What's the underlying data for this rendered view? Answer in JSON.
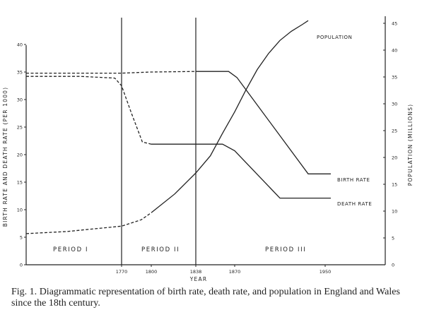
{
  "chart_data": {
    "type": "line",
    "title": "",
    "xlabel": "YEAR",
    "ylabel_left": "BIRTH RATE AND DEATH RATE (PER 1000)",
    "ylabel_right": "POPULATION (MILLIONS)",
    "x_ticks": [
      "1770",
      "1800",
      "1838",
      "1870",
      "1950"
    ],
    "y_left_ticks": [
      "0",
      "5",
      "10",
      "15",
      "20",
      "25",
      "30",
      "35",
      "40"
    ],
    "y_right_ticks": [
      "0",
      "5",
      "10",
      "15",
      "20",
      "25",
      "30",
      "35",
      "40",
      "45"
    ],
    "xlim": [
      1700,
      1980
    ],
    "ylim_left": [
      0,
      40
    ],
    "ylim_right": [
      0,
      45
    ],
    "grid": false,
    "period_dividers": [
      1770,
      1838
    ],
    "periods": [
      {
        "label": "PERIOD   I",
        "x": 1732
      },
      {
        "label": "PERIOD  II",
        "x": 1804
      },
      {
        "label": "PERIOD    III",
        "x": 1903
      }
    ],
    "series": [
      {
        "name": "BIRTH RATE",
        "axis": "left",
        "dashed_until": 1838,
        "points": [
          [
            1700,
            34.8
          ],
          [
            1740,
            34.8
          ],
          [
            1770,
            34.8
          ],
          [
            1800,
            35.0
          ],
          [
            1838,
            35.1
          ],
          [
            1865,
            35.1
          ],
          [
            1872,
            34.0
          ],
          [
            1935,
            16.5
          ],
          [
            1955,
            16.5
          ]
        ]
      },
      {
        "name": "DEATH RATE",
        "axis": "left",
        "dashed_until": 1800,
        "points": [
          [
            1700,
            34.2
          ],
          [
            1740,
            34.2
          ],
          [
            1765,
            33.9
          ],
          [
            1770,
            32.5
          ],
          [
            1780,
            27.5
          ],
          [
            1791,
            22.3
          ],
          [
            1800,
            21.9
          ],
          [
            1838,
            21.9
          ],
          [
            1860,
            21.9
          ],
          [
            1870,
            20.7
          ],
          [
            1910,
            12.1
          ],
          [
            1955,
            12.1
          ]
        ]
      },
      {
        "name": "POPULATION",
        "axis": "right",
        "dashed_until": 1800,
        "points": [
          [
            1700,
            5.8
          ],
          [
            1730,
            6.2
          ],
          [
            1750,
            6.7
          ],
          [
            1770,
            7.2
          ],
          [
            1790,
            8.4
          ],
          [
            1800,
            9.7
          ],
          [
            1820,
            13.2
          ],
          [
            1838,
            17.1
          ],
          [
            1850,
            20.3
          ],
          [
            1860,
            24.5
          ],
          [
            1870,
            28.5
          ],
          [
            1880,
            32.6
          ],
          [
            1890,
            36.4
          ],
          [
            1900,
            39.4
          ],
          [
            1910,
            41.8
          ],
          [
            1920,
            43.5
          ],
          [
            1930,
            44.8
          ],
          [
            1935,
            45.5
          ]
        ]
      }
    ],
    "series_labels": {
      "population": "POPULATION",
      "birth_rate": "BIRTH RATE",
      "death_rate": "DEATH RATE"
    }
  },
  "caption": {
    "prefix": "Fig. 1.",
    "text": "Diagrammatic representation of birth rate, death rate, and population in England and Wales since the 18th century."
  }
}
